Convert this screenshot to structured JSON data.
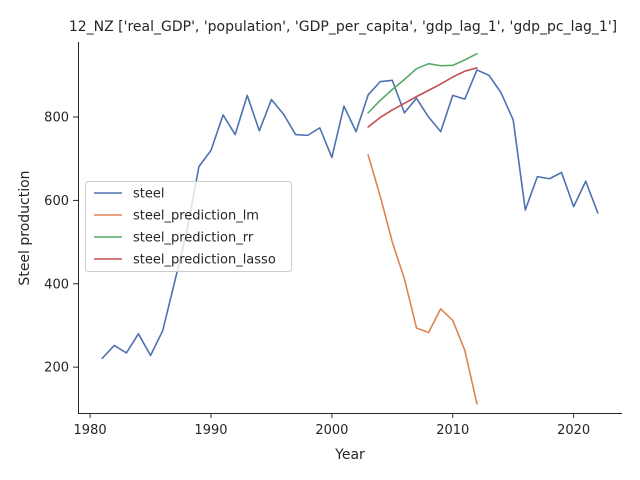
{
  "chart_data": {
    "type": "line",
    "title": "12_NZ ['real_GDP', 'population', 'GDP_per_capita', 'gdp_lag_1', 'gdp_pc_lag_1']",
    "xlabel": "Year",
    "ylabel": "Steel production",
    "xlim": [
      1979,
      2024
    ],
    "ylim": [
      90,
      980
    ],
    "xticks": [
      1980,
      1990,
      2000,
      2010,
      2020
    ],
    "yticks": [
      200,
      400,
      600,
      800
    ],
    "grid": false,
    "legend_position": "center-left",
    "series": [
      {
        "name": "steel",
        "color": "#4c72b0",
        "x": [
          1981,
          1982,
          1983,
          1984,
          1985,
          1986,
          1987,
          1988,
          1989,
          1990,
          1991,
          1992,
          1993,
          1994,
          1995,
          1996,
          1997,
          1998,
          1999,
          2000,
          2001,
          2002,
          2003,
          2004,
          2005,
          2006,
          2007,
          2008,
          2009,
          2010,
          2011,
          2012,
          2013,
          2014,
          2015,
          2016,
          2017,
          2018,
          2019,
          2020,
          2021,
          2022
        ],
        "y": [
          221,
          252,
          234,
          280,
          228,
          287,
          405,
          525,
          681,
          720,
          805,
          758,
          852,
          767,
          842,
          807,
          758,
          756,
          774,
          703,
          826,
          765,
          853,
          885,
          888,
          810,
          845,
          800,
          765,
          852,
          843,
          913,
          900,
          858,
          793,
          577,
          657,
          652,
          667,
          585,
          646,
          570
        ]
      },
      {
        "name": "steel_prediction_lm",
        "color": "#dd8452",
        "x": [
          2003,
          2004,
          2005,
          2006,
          2007,
          2008,
          2009,
          2010,
          2011,
          2012
        ],
        "y": [
          709,
          610,
          500,
          412,
          294,
          283,
          340,
          312,
          240,
          112
        ]
      },
      {
        "name": "steel_prediction_rr",
        "color": "#55a868",
        "x": [
          2003,
          2004,
          2005,
          2006,
          2007,
          2008,
          2009,
          2010,
          2011,
          2012
        ],
        "y": [
          810,
          840,
          866,
          890,
          916,
          928,
          923,
          924,
          937,
          952
        ]
      },
      {
        "name": "steel_prediction_lasso",
        "color": "#c44e52",
        "x": [
          2003,
          2004,
          2005,
          2006,
          2007,
          2008,
          2009,
          2010,
          2011,
          2012
        ],
        "y": [
          776,
          799,
          817,
          833,
          849,
          864,
          879,
          896,
          910,
          918
        ]
      }
    ]
  }
}
